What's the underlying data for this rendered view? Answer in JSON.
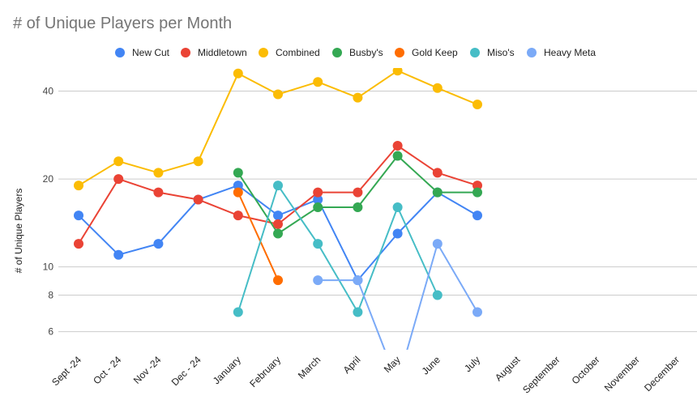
{
  "chart_data": {
    "type": "line",
    "title": "# of Unique Players per Month",
    "ylabel": "# of Unique Players",
    "xlabel": "",
    "y_scale": "log",
    "y_ticks": [
      6,
      8,
      10,
      20,
      40
    ],
    "grid": true,
    "legend_position": "top",
    "categories": [
      "Sept -24",
      "Oct - 24",
      "Nov -24",
      "Dec - 24",
      "January",
      "February",
      "March",
      "April",
      "May",
      "June",
      "July",
      "August",
      "September",
      "October",
      "November",
      "December"
    ],
    "series": [
      {
        "name": "New Cut",
        "color": "#4285f4",
        "values": [
          15,
          11,
          12,
          17,
          19,
          15,
          17,
          9,
          13,
          18,
          15,
          null,
          null,
          null,
          null,
          null
        ]
      },
      {
        "name": "Middletown",
        "color": "#ea4335",
        "values": [
          12,
          20,
          18,
          17,
          15,
          14,
          18,
          18,
          26,
          21,
          19,
          null,
          null,
          null,
          null,
          null
        ]
      },
      {
        "name": "Combined",
        "color": "#fbbc04",
        "values": [
          19,
          23,
          21,
          23,
          46,
          39,
          43,
          38,
          47,
          41,
          36,
          null,
          null,
          null,
          null,
          null
        ]
      },
      {
        "name": "Busby's",
        "color": "#34a853",
        "values": [
          null,
          null,
          null,
          null,
          21,
          13,
          16,
          16,
          24,
          18,
          18,
          null,
          null,
          null,
          null,
          null
        ]
      },
      {
        "name": "Gold Keep",
        "color": "#ff6d01",
        "values": [
          null,
          null,
          null,
          null,
          18,
          9,
          null,
          null,
          null,
          null,
          null,
          null,
          null,
          null,
          null,
          null
        ]
      },
      {
        "name": "Miso's",
        "color": "#46bdc6",
        "values": [
          null,
          null,
          null,
          null,
          7,
          19,
          12,
          7,
          16,
          8,
          null,
          null,
          null,
          null,
          null,
          null
        ]
      },
      {
        "name": "Heavy Meta",
        "color": "#7baaf7",
        "values": [
          null,
          null,
          null,
          null,
          null,
          null,
          9,
          9,
          4,
          12,
          7,
          null,
          null,
          null,
          null,
          null
        ]
      }
    ]
  }
}
